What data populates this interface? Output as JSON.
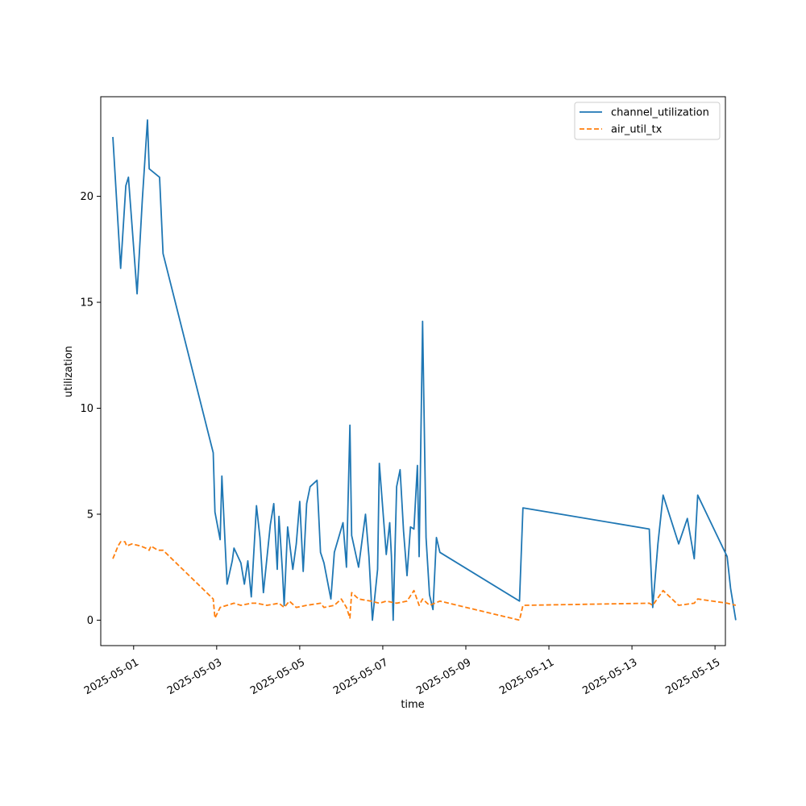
{
  "chart_data": {
    "type": "line",
    "title": "",
    "xlabel": "time",
    "ylabel": "utilization",
    "x_type": "datetime",
    "xlim": [
      "2025-04-30T05:00",
      "2025-05-15T06:00"
    ],
    "ylim": [
      -1.2,
      24.7
    ],
    "grid": false,
    "legend_position": "top-right",
    "x_ticks": [
      "2025-05-01",
      "2025-05-03",
      "2025-05-05",
      "2025-05-07",
      "2025-05-09",
      "2025-05-11",
      "2025-05-13",
      "2025-05-15"
    ],
    "y_ticks": [
      0,
      5,
      10,
      15,
      20
    ],
    "series": [
      {
        "name": "channel_utilization",
        "color": "#1f77b4",
        "dash": "solid",
        "points": [
          [
            "2025-04-30T12:00",
            22.8
          ],
          [
            "2025-04-30T16:30",
            16.6
          ],
          [
            "2025-04-30T19:30",
            20.5
          ],
          [
            "2025-04-30T21:00",
            20.9
          ],
          [
            "2025-05-01T02:00",
            15.4
          ],
          [
            "2025-05-01T05:00",
            19.8
          ],
          [
            "2025-05-01T08:00",
            23.6
          ],
          [
            "2025-05-01T09:00",
            21.3
          ],
          [
            "2025-05-01T15:00",
            20.9
          ],
          [
            "2025-05-01T17:00",
            17.3
          ],
          [
            "2025-05-02T22:00",
            7.9
          ],
          [
            "2025-05-02T23:00",
            5.1
          ],
          [
            "2025-05-03T02:00",
            3.8
          ],
          [
            "2025-05-03T03:00",
            6.8
          ],
          [
            "2025-05-03T06:00",
            1.7
          ],
          [
            "2025-05-03T09:00",
            2.8
          ],
          [
            "2025-05-03T10:00",
            3.4
          ],
          [
            "2025-05-03T14:00",
            2.7
          ],
          [
            "2025-05-03T16:00",
            1.7
          ],
          [
            "2025-05-03T18:00",
            2.8
          ],
          [
            "2025-05-03T20:00",
            1.1
          ],
          [
            "2025-05-03T23:00",
            5.4
          ],
          [
            "2025-05-04T01:00",
            3.9
          ],
          [
            "2025-05-04T03:00",
            1.3
          ],
          [
            "2025-05-04T05:00",
            2.9
          ],
          [
            "2025-05-04T07:00",
            4.5
          ],
          [
            "2025-05-04T09:00",
            5.5
          ],
          [
            "2025-05-04T11:00",
            2.4
          ],
          [
            "2025-05-04T12:00",
            4.9
          ],
          [
            "2025-05-04T14:00",
            2.3
          ],
          [
            "2025-05-04T15:00",
            0.7
          ],
          [
            "2025-05-04T17:00",
            4.4
          ],
          [
            "2025-05-04T20:00",
            2.4
          ],
          [
            "2025-05-04T22:00",
            3.6
          ],
          [
            "2025-05-05T00:00",
            5.6
          ],
          [
            "2025-05-05T02:00",
            2.3
          ],
          [
            "2025-05-05T04:00",
            5.5
          ],
          [
            "2025-05-05T06:00",
            6.3
          ],
          [
            "2025-05-05T10:00",
            6.6
          ],
          [
            "2025-05-05T12:00",
            3.2
          ],
          [
            "2025-05-05T14:00",
            2.7
          ],
          [
            "2025-05-05T18:00",
            1.0
          ],
          [
            "2025-05-05T20:00",
            3.2
          ],
          [
            "2025-05-06T01:00",
            4.6
          ],
          [
            "2025-05-06T03:00",
            2.5
          ],
          [
            "2025-05-06T05:00",
            9.2
          ],
          [
            "2025-05-06T06:00",
            4.0
          ],
          [
            "2025-05-06T10:00",
            2.5
          ],
          [
            "2025-05-06T14:00",
            5.0
          ],
          [
            "2025-05-06T16:00",
            3.0
          ],
          [
            "2025-05-06T17:00",
            1.5
          ],
          [
            "2025-05-06T18:00",
            0.0
          ],
          [
            "2025-05-06T21:00",
            2.4
          ],
          [
            "2025-05-06T22:00",
            7.4
          ],
          [
            "2025-05-07T02:00",
            3.1
          ],
          [
            "2025-05-07T04:00",
            4.6
          ],
          [
            "2025-05-07T05:00",
            3.0
          ],
          [
            "2025-05-07T06:00",
            0.0
          ],
          [
            "2025-05-07T08:00",
            6.3
          ],
          [
            "2025-05-07T10:00",
            7.1
          ],
          [
            "2025-05-07T12:00",
            4.2
          ],
          [
            "2025-05-07T14:00",
            2.1
          ],
          [
            "2025-05-07T16:00",
            4.4
          ],
          [
            "2025-05-07T18:00",
            4.3
          ],
          [
            "2025-05-07T20:00",
            7.3
          ],
          [
            "2025-05-07T21:00",
            3.0
          ],
          [
            "2025-05-07T23:00",
            14.1
          ],
          [
            "2025-05-08T01:00",
            3.9
          ],
          [
            "2025-05-08T03:00",
            1.2
          ],
          [
            "2025-05-08T05:00",
            0.5
          ],
          [
            "2025-05-08T07:00",
            3.9
          ],
          [
            "2025-05-08T09:00",
            3.2
          ],
          [
            "2025-05-10T07:00",
            0.9
          ],
          [
            "2025-05-10T09:00",
            5.3
          ],
          [
            "2025-05-13T10:00",
            4.3
          ],
          [
            "2025-05-13T12:00",
            0.6
          ],
          [
            "2025-05-13T15:00",
            3.6
          ],
          [
            "2025-05-13T18:00",
            5.9
          ],
          [
            "2025-05-14T03:00",
            3.6
          ],
          [
            "2025-05-14T08:00",
            4.8
          ],
          [
            "2025-05-14T12:00",
            2.9
          ],
          [
            "2025-05-14T14:00",
            5.9
          ],
          [
            "2025-05-15T07:00",
            3.0
          ],
          [
            "2025-05-15T09:00",
            1.5
          ],
          [
            "2025-05-15T12:00",
            0.0
          ]
        ]
      },
      {
        "name": "air_util_tx",
        "color": "#ff7f0e",
        "dash": "dashed",
        "points": [
          [
            "2025-04-30T12:00",
            2.9
          ],
          [
            "2025-04-30T15:00",
            3.5
          ],
          [
            "2025-04-30T16:30",
            3.7
          ],
          [
            "2025-04-30T19:00",
            3.7
          ],
          [
            "2025-04-30T20:00",
            3.5
          ],
          [
            "2025-04-30T23:00",
            3.6
          ],
          [
            "2025-05-01T04:00",
            3.5
          ],
          [
            "2025-05-01T07:00",
            3.4
          ],
          [
            "2025-05-01T09:00",
            3.3
          ],
          [
            "2025-05-01T10:00",
            3.5
          ],
          [
            "2025-05-01T14:00",
            3.3
          ],
          [
            "2025-05-01T17:00",
            3.3
          ],
          [
            "2025-05-02T22:00",
            1.0
          ],
          [
            "2025-05-02T23:00",
            0.1
          ],
          [
            "2025-05-03T02:00",
            0.6
          ],
          [
            "2025-05-03T06:00",
            0.7
          ],
          [
            "2025-05-03T10:00",
            0.8
          ],
          [
            "2025-05-03T14:00",
            0.7
          ],
          [
            "2025-05-03T20:00",
            0.8
          ],
          [
            "2025-05-03T23:00",
            0.8
          ],
          [
            "2025-05-04T05:00",
            0.7
          ],
          [
            "2025-05-04T12:00",
            0.8
          ],
          [
            "2025-05-04T15:00",
            0.6
          ],
          [
            "2025-05-04T18:00",
            0.9
          ],
          [
            "2025-05-04T22:00",
            0.6
          ],
          [
            "2025-05-05T04:00",
            0.7
          ],
          [
            "2025-05-05T12:00",
            0.8
          ],
          [
            "2025-05-05T14:00",
            0.6
          ],
          [
            "2025-05-05T20:00",
            0.7
          ],
          [
            "2025-05-06T00:00",
            1.0
          ],
          [
            "2025-05-06T03:00",
            0.6
          ],
          [
            "2025-05-06T05:00",
            0.1
          ],
          [
            "2025-05-06T06:00",
            1.3
          ],
          [
            "2025-05-06T10:00",
            1.0
          ],
          [
            "2025-05-06T17:00",
            0.9
          ],
          [
            "2025-05-06T22:00",
            0.8
          ],
          [
            "2025-05-07T02:00",
            0.9
          ],
          [
            "2025-05-07T08:00",
            0.8
          ],
          [
            "2025-05-07T14:00",
            0.9
          ],
          [
            "2025-05-07T18:00",
            1.4
          ],
          [
            "2025-05-07T21:00",
            0.7
          ],
          [
            "2025-05-07T23:00",
            1.0
          ],
          [
            "2025-05-08T03:00",
            0.7
          ],
          [
            "2025-05-08T09:00",
            0.9
          ],
          [
            "2025-05-10T07:00",
            0.0
          ],
          [
            "2025-05-10T09:00",
            0.7
          ],
          [
            "2025-05-13T10:00",
            0.8
          ],
          [
            "2025-05-13T12:00",
            0.7
          ],
          [
            "2025-05-13T18:00",
            1.4
          ],
          [
            "2025-05-14T03:00",
            0.7
          ],
          [
            "2025-05-14T12:00",
            0.8
          ],
          [
            "2025-05-14T14:00",
            1.0
          ],
          [
            "2025-05-15T07:00",
            0.8
          ],
          [
            "2025-05-15T12:00",
            0.7
          ]
        ]
      }
    ]
  }
}
